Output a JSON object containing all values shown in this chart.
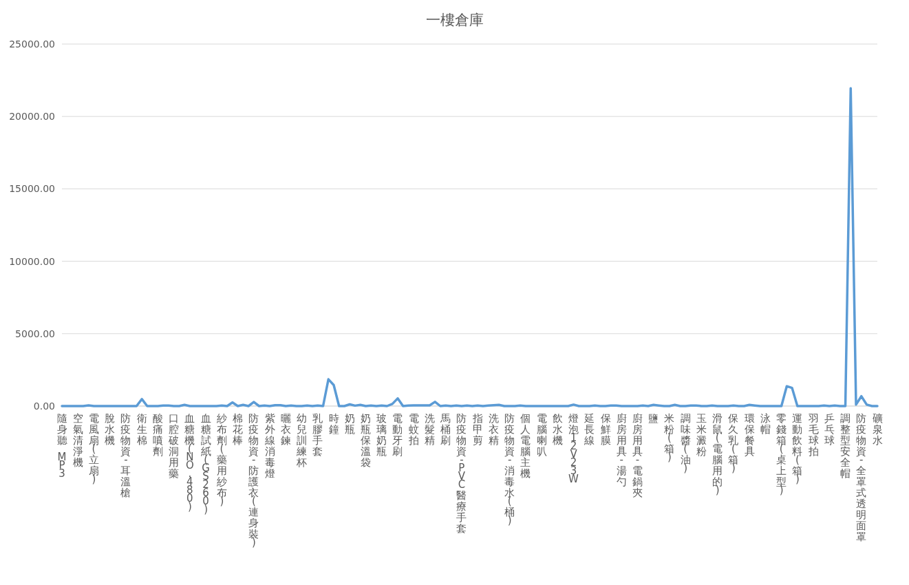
{
  "chart_data": {
    "type": "line",
    "title": "一樓倉庫",
    "categories": [
      "隨身聽 MP3",
      null,
      null,
      "空氣清淨機",
      null,
      null,
      "電風扇(立扇)",
      null,
      null,
      "脫水機",
      null,
      null,
      "防疫物資-耳溫槍",
      null,
      null,
      "衛生棉",
      null,
      null,
      "酸痛噴劑",
      null,
      null,
      "口腔破洞用藥",
      null,
      null,
      "血糖機(NO.480)",
      null,
      null,
      "血糖試紙(GS260)",
      null,
      null,
      "紗布劑(藥用紗布)",
      null,
      null,
      "棉花棒",
      null,
      null,
      "防疫物資-防護衣(連身裝)",
      null,
      null,
      "紫外線消毒燈",
      null,
      null,
      "曬衣鍊",
      null,
      null,
      "幼兒訓練杯",
      null,
      null,
      "乳膠手套",
      null,
      null,
      "時鐘",
      null,
      null,
      "奶瓶",
      null,
      null,
      "奶瓶保溫袋",
      null,
      null,
      "玻璃奶瓶",
      null,
      null,
      "電動牙刷",
      null,
      null,
      "電蚊拍",
      null,
      null,
      "洗髮精",
      null,
      null,
      "馬桶刷",
      null,
      null,
      "防疫物資-PVC醫療手套",
      null,
      null,
      "指甲剪",
      null,
      null,
      "洗衣精",
      null,
      null,
      "防疫物資-消毒水(桶)",
      null,
      null,
      "個人電腦主機",
      null,
      null,
      "電腦喇叭",
      null,
      null,
      "飲水機",
      null,
      null,
      "燈泡12V23W",
      null,
      null,
      "延長線",
      null,
      null,
      "保鮮膜",
      null,
      null,
      "廚房用具-湯勺",
      null,
      null,
      "廚房用具-電鍋夾",
      null,
      null,
      "鹽",
      null,
      null,
      "米粉(箱)",
      null,
      null,
      "調味醬(油)",
      null,
      null,
      "玉米澱粉",
      null,
      null,
      "滑鼠(電腦用的)",
      null,
      null,
      "保久乳(箱)",
      null,
      null,
      "環保餐具",
      null,
      null,
      "泳帽",
      null,
      null,
      "零錢箱(桌上型)",
      null,
      null,
      "運動飲料(箱)",
      null,
      null,
      "羽毛球拍",
      null,
      null,
      "乒乓球",
      null,
      null,
      "調整型安全帽",
      null,
      null,
      "防疫物資-全罩式透明面罩",
      null,
      null,
      "礦泉水"
    ],
    "values": [
      0,
      0,
      0,
      0,
      0,
      50,
      0,
      0,
      0,
      0,
      0,
      0,
      0,
      0,
      0,
      480,
      0,
      0,
      0,
      40,
      40,
      0,
      0,
      80,
      0,
      0,
      0,
      0,
      0,
      0,
      40,
      0,
      250,
      0,
      80,
      0,
      280,
      0,
      40,
      0,
      60,
      60,
      0,
      40,
      0,
      0,
      40,
      0,
      40,
      0,
      1850,
      1450,
      0,
      0,
      120,
      30,
      80,
      0,
      40,
      0,
      40,
      0,
      150,
      530,
      0,
      40,
      50,
      50,
      50,
      50,
      290,
      0,
      40,
      0,
      40,
      0,
      40,
      0,
      40,
      0,
      40,
      60,
      80,
      0,
      0,
      0,
      40,
      0,
      0,
      0,
      0,
      0,
      0,
      0,
      0,
      0,
      100,
      0,
      0,
      0,
      40,
      0,
      0,
      40,
      40,
      0,
      0,
      0,
      0,
      40,
      0,
      80,
      40,
      0,
      0,
      80,
      0,
      0,
      40,
      40,
      0,
      0,
      40,
      0,
      0,
      0,
      40,
      0,
      0,
      80,
      40,
      0,
      0,
      0,
      0,
      0,
      1370,
      1250,
      0,
      0,
      0,
      0,
      0,
      40,
      0,
      40,
      0,
      0,
      21950,
      100,
      680,
      100,
      0,
      0
    ],
    "color": "#5b9bd5",
    "ylim": [
      0,
      25000
    ],
    "yticks": [
      {
        "value": 0,
        "label": "0.00"
      },
      {
        "value": 5000,
        "label": "5000.00"
      },
      {
        "value": 10000,
        "label": "10000.00"
      },
      {
        "value": 15000,
        "label": "15000.00"
      },
      {
        "value": 20000,
        "label": "20000.00"
      },
      {
        "value": 25000,
        "label": "25000.00"
      }
    ],
    "grid": "y"
  }
}
